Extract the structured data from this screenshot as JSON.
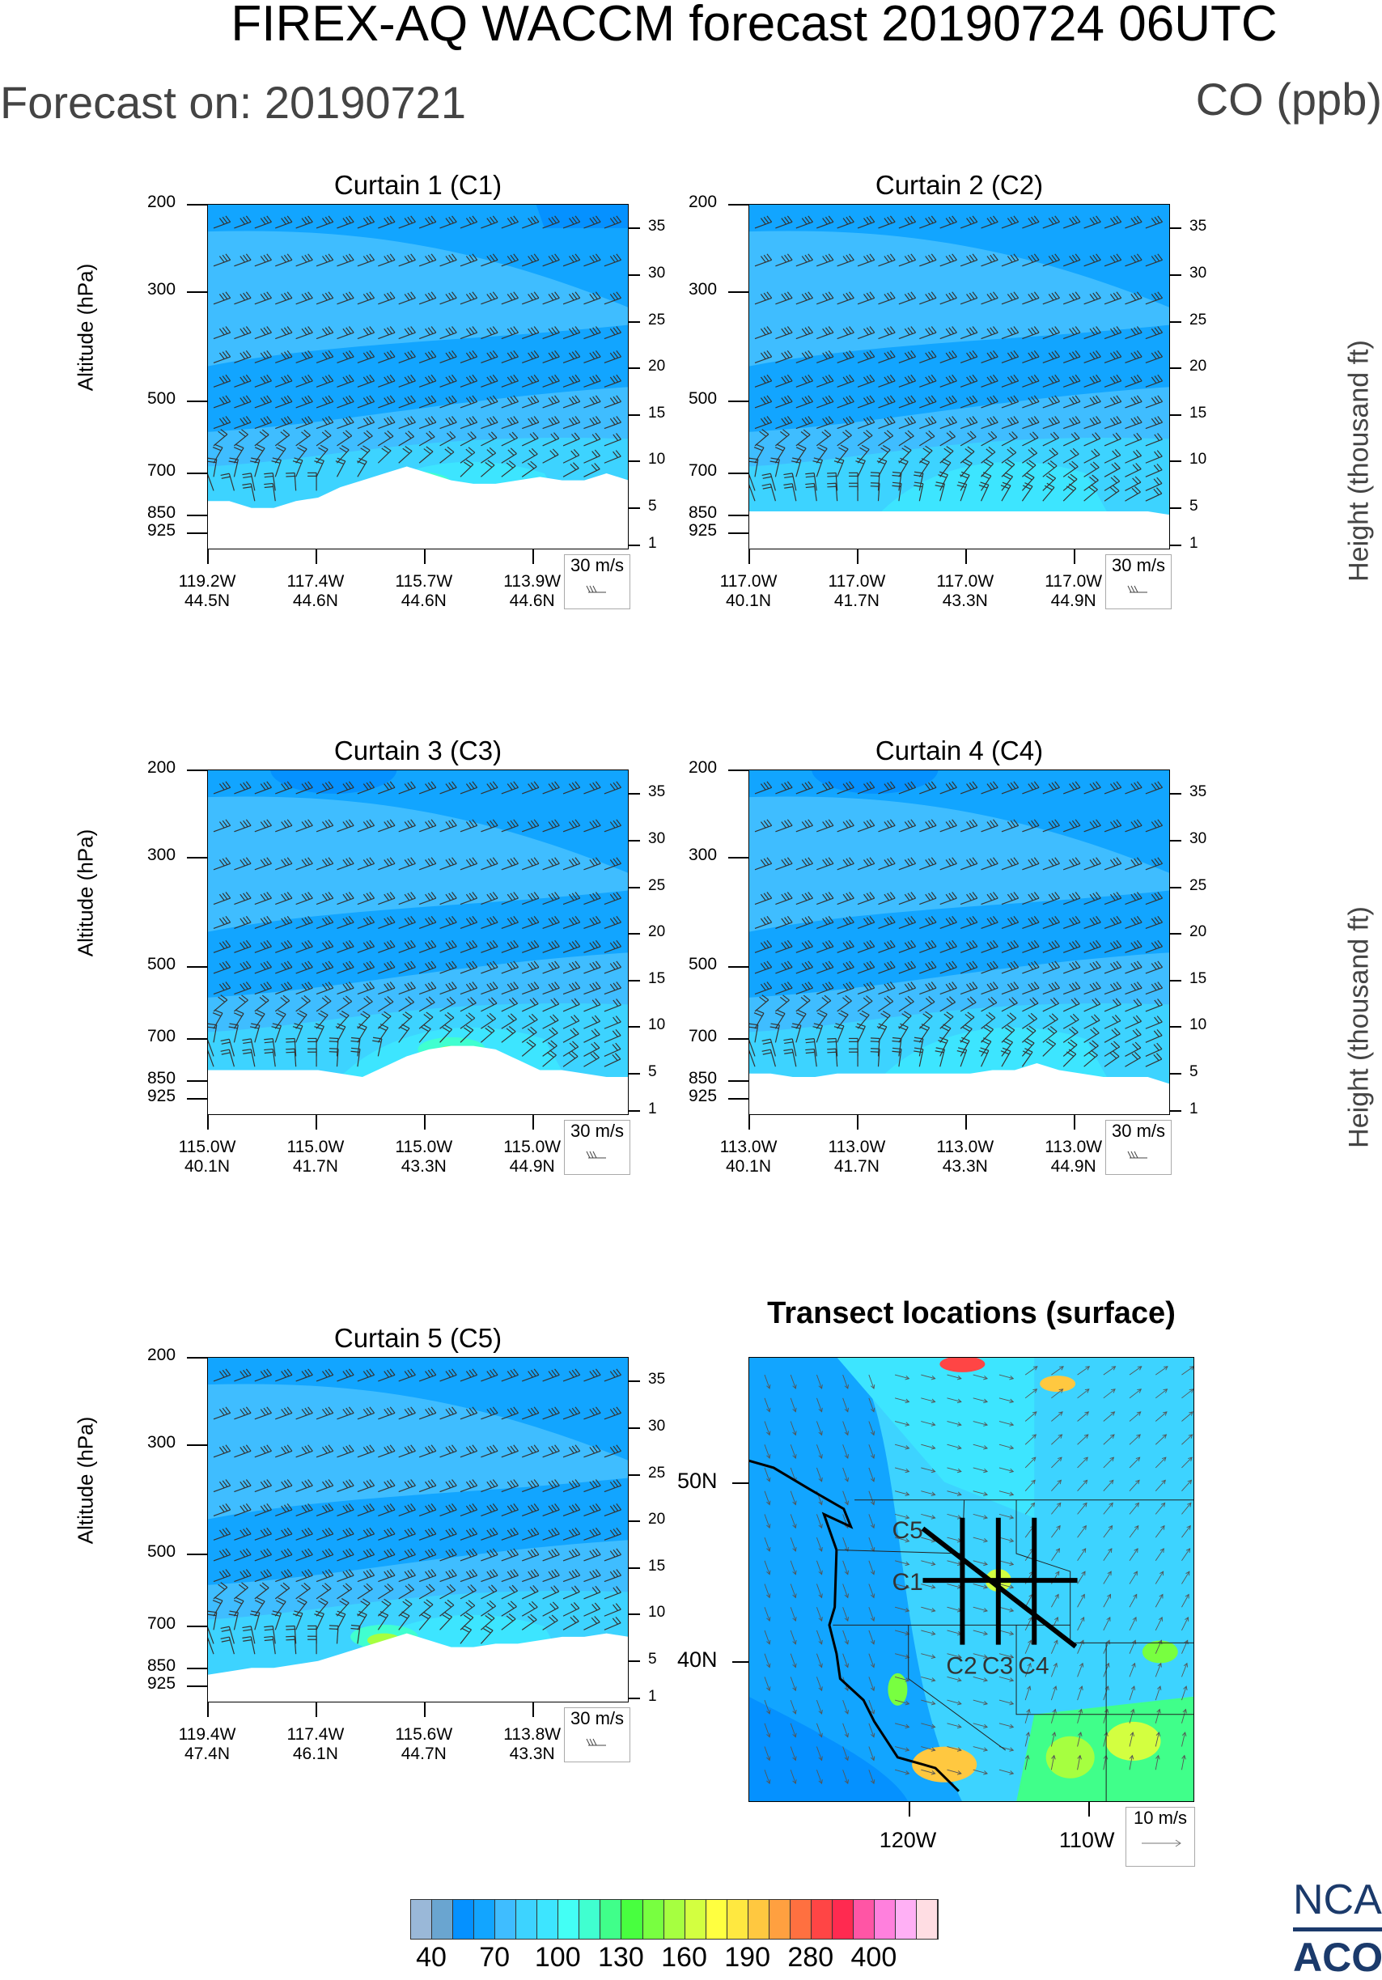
{
  "header": {
    "title": "FIREX-AQ WACCM forecast 20190724 06UTC",
    "forecast_on": "Forecast on: 20190721",
    "species": "CO (ppb)"
  },
  "right_axis_label": "Height (thousand ft)",
  "logo": {
    "line1": "NCAR",
    "line2": "ACOM"
  },
  "chart_data": [
    {
      "type": "heatmap",
      "id": "c1",
      "title": "Curtain 1 (C1)",
      "ylabel": "Altitude (hPa)",
      "yticks": [
        "200",
        "300",
        "500",
        "700",
        "850",
        "925"
      ],
      "ylim": [
        1000,
        200
      ],
      "right_ticks": [
        "35",
        "30",
        "25",
        "20",
        "15",
        "10",
        "5",
        "1"
      ],
      "xticks": [
        [
          "119.2W",
          "44.5N"
        ],
        [
          "117.4W",
          "44.6N"
        ],
        [
          "115.7W",
          "44.6N"
        ],
        [
          "113.9W",
          "44.6N"
        ]
      ],
      "wind_legend": "30 m/s"
    },
    {
      "type": "heatmap",
      "id": "c2",
      "title": "Curtain 2 (C2)",
      "ylabel": "",
      "yticks": [
        "200",
        "300",
        "500",
        "700",
        "850",
        "925"
      ],
      "ylim": [
        1000,
        200
      ],
      "right_ticks": [
        "35",
        "30",
        "25",
        "20",
        "15",
        "10",
        "5",
        "1"
      ],
      "xticks": [
        [
          "117.0W",
          "40.1N"
        ],
        [
          "117.0W",
          "41.7N"
        ],
        [
          "117.0W",
          "43.3N"
        ],
        [
          "117.0W",
          "44.9N"
        ]
      ],
      "wind_legend": "30 m/s"
    },
    {
      "type": "heatmap",
      "id": "c3",
      "title": "Curtain 3 (C3)",
      "ylabel": "Altitude (hPa)",
      "yticks": [
        "200",
        "300",
        "500",
        "700",
        "850",
        "925"
      ],
      "ylim": [
        1000,
        200
      ],
      "right_ticks": [
        "35",
        "30",
        "25",
        "20",
        "15",
        "10",
        "5",
        "1"
      ],
      "xticks": [
        [
          "115.0W",
          "40.1N"
        ],
        [
          "115.0W",
          "41.7N"
        ],
        [
          "115.0W",
          "43.3N"
        ],
        [
          "115.0W",
          "44.9N"
        ]
      ],
      "wind_legend": "30 m/s"
    },
    {
      "type": "heatmap",
      "id": "c4",
      "title": "Curtain 4 (C4)",
      "ylabel": "",
      "yticks": [
        "200",
        "300",
        "500",
        "700",
        "850",
        "925"
      ],
      "ylim": [
        1000,
        200
      ],
      "right_ticks": [
        "35",
        "30",
        "25",
        "20",
        "15",
        "10",
        "5",
        "1"
      ],
      "xticks": [
        [
          "113.0W",
          "40.1N"
        ],
        [
          "113.0W",
          "41.7N"
        ],
        [
          "113.0W",
          "43.3N"
        ],
        [
          "113.0W",
          "44.9N"
        ]
      ],
      "wind_legend": "30 m/s"
    },
    {
      "type": "heatmap",
      "id": "c5",
      "title": "Curtain 5 (C5)",
      "ylabel": "Altitude (hPa)",
      "yticks": [
        "200",
        "300",
        "500",
        "700",
        "850",
        "925"
      ],
      "ylim": [
        1000,
        200
      ],
      "right_ticks": [
        "35",
        "30",
        "25",
        "20",
        "15",
        "10",
        "5",
        "1"
      ],
      "xticks": [
        [
          "119.4W",
          "47.4N"
        ],
        [
          "117.4W",
          "46.1N"
        ],
        [
          "115.6W",
          "44.7N"
        ],
        [
          "113.8W",
          "43.3N"
        ]
      ],
      "wind_legend": "30 m/s"
    },
    {
      "type": "map",
      "id": "map",
      "title": "Transect locations (surface)",
      "lat_ticks": [
        "50N",
        "40N"
      ],
      "lon_ticks": [
        "120W",
        "110W"
      ],
      "wind_legend": "10 m/s",
      "xlim": [
        -128.9,
        -104.1
      ],
      "ylim": [
        32.1,
        57.0
      ],
      "transects": [
        {
          "label": "C1",
          "from": [
            -119.2,
            44.5
          ],
          "to": [
            -110.6,
            44.5
          ]
        },
        {
          "label": "C2",
          "from": [
            -117.0,
            48.0
          ],
          "to": [
            -117.0,
            40.9
          ]
        },
        {
          "label": "C3",
          "from": [
            -115.0,
            48.0
          ],
          "to": [
            -115.0,
            40.9
          ]
        },
        {
          "label": "C4",
          "from": [
            -113.0,
            48.0
          ],
          "to": [
            -113.0,
            40.9
          ]
        },
        {
          "label": "C5",
          "from": [
            -119.2,
            47.4
          ],
          "to": [
            -110.7,
            40.8
          ]
        }
      ]
    }
  ],
  "colorbar": {
    "colors": [
      "#9ab8d8",
      "#6aa5d0",
      "#0591ff",
      "#12a5ff",
      "#3fbdff",
      "#3dd3ff",
      "#3de5ff",
      "#43fff5",
      "#40ffd0",
      "#40ff8a",
      "#48ff3f",
      "#78ff40",
      "#a6ff40",
      "#d3ff40",
      "#ffff40",
      "#ffe840",
      "#ffc840",
      "#ffa040",
      "#ff7040",
      "#ff4545",
      "#ff2a50",
      "#ff55a5",
      "#ff80dd",
      "#ffb0f5",
      "#ffdde3"
    ],
    "labels": [
      "40",
      "70",
      "100",
      "130",
      "160",
      "190",
      "280",
      "400"
    ]
  }
}
